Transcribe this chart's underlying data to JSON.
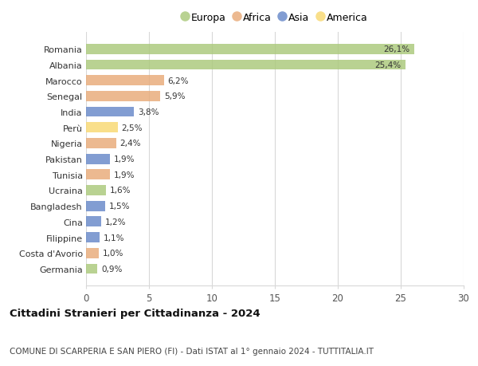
{
  "categories": [
    "Romania",
    "Albania",
    "Marocco",
    "Senegal",
    "India",
    "Perù",
    "Nigeria",
    "Pakistan",
    "Tunisia",
    "Ucraina",
    "Bangladesh",
    "Cina",
    "Filippine",
    "Costa d'Avorio",
    "Germania"
  ],
  "values": [
    26.1,
    25.4,
    6.2,
    5.9,
    3.8,
    2.5,
    2.4,
    1.9,
    1.9,
    1.6,
    1.5,
    1.2,
    1.1,
    1.0,
    0.9
  ],
  "labels": [
    "26,1%",
    "25,4%",
    "6,2%",
    "5,9%",
    "3,8%",
    "2,5%",
    "2,4%",
    "1,9%",
    "1,9%",
    "1,6%",
    "1,5%",
    "1,2%",
    "1,1%",
    "1,0%",
    "0,9%"
  ],
  "continents": [
    "Europa",
    "Europa",
    "Africa",
    "Africa",
    "Asia",
    "America",
    "Africa",
    "Asia",
    "Africa",
    "Europa",
    "Asia",
    "Asia",
    "Asia",
    "Africa",
    "Europa"
  ],
  "colors": {
    "Europa": "#aac97a",
    "Africa": "#e8aa78",
    "Asia": "#6688c8",
    "America": "#f8d870"
  },
  "legend_order": [
    "Europa",
    "Africa",
    "Asia",
    "America"
  ],
  "title": "Cittadini Stranieri per Cittadinanza - 2024",
  "subtitle": "COMUNE DI SCARPERIA E SAN PIERO (FI) - Dati ISTAT al 1° gennaio 2024 - TUTTITALIA.IT",
  "xlim": [
    0,
    30
  ],
  "xticks": [
    0,
    5,
    10,
    15,
    20,
    25,
    30
  ],
  "background_color": "#ffffff",
  "grid_color": "#d8d8d8",
  "bar_height": 0.65,
  "bar_alpha": 0.82,
  "label_fontsize": 7.5,
  "ytick_fontsize": 8.0,
  "xtick_fontsize": 8.5,
  "title_fontsize": 9.5,
  "subtitle_fontsize": 7.5,
  "legend_fontsize": 9.0
}
